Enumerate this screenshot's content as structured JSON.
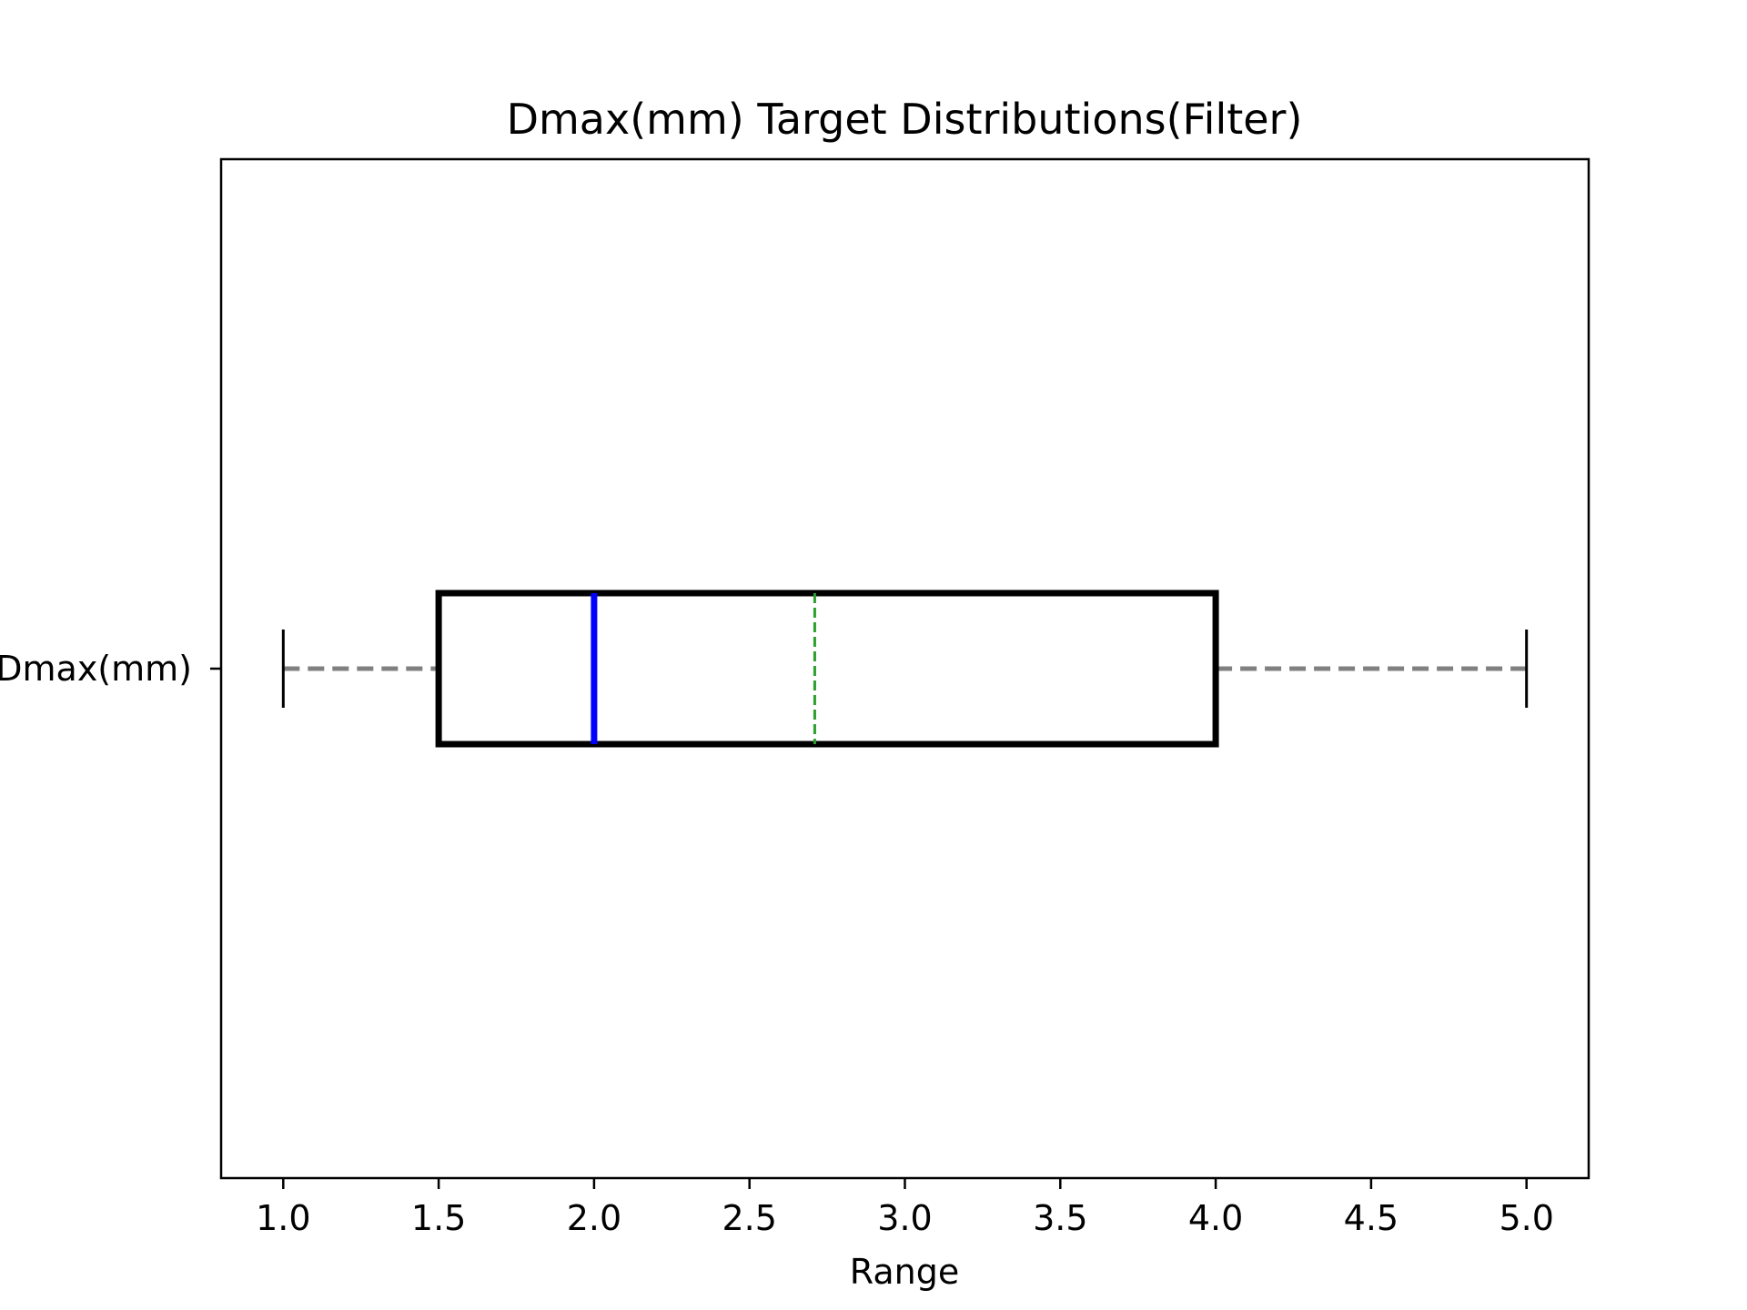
{
  "chart_data": {
    "type": "boxplot",
    "orientation": "horizontal",
    "title": "Dmax(mm) Target Distributions(Filter)",
    "xlabel": "Range",
    "ylabel": "",
    "xlim": [
      0.8,
      5.2
    ],
    "xticks": [
      "1.0",
      "1.5",
      "2.0",
      "2.5",
      "3.0",
      "3.5",
      "4.0",
      "4.5",
      "5.0"
    ],
    "grid": false,
    "series": [
      {
        "name": "Dmax(mm)",
        "whisker_low": 1.0,
        "q1": 1.5,
        "median": 2.0,
        "mean": 2.71,
        "q3": 4.0,
        "whisker_high": 5.0
      }
    ],
    "colors": {
      "box": "#000000",
      "median": "#0000ff",
      "mean": "#2ca02c",
      "whisker": "#808080",
      "cap": "#000000"
    }
  }
}
